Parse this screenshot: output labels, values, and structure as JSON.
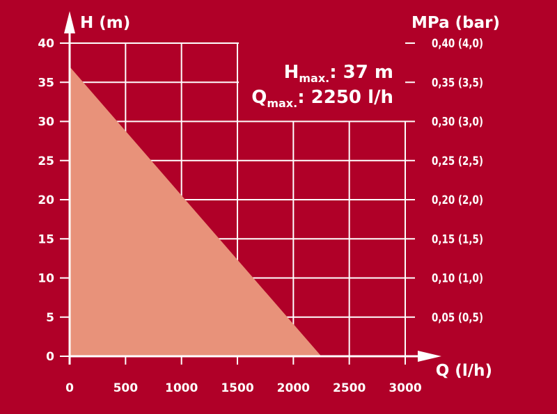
{
  "chart_data": {
    "type": "area",
    "xlabel": "Q (l/h)",
    "ylabel": "H (m)",
    "y2label": "MPa (bar)",
    "xlim": [
      0,
      3000
    ],
    "ylim": [
      0,
      40
    ],
    "x_ticks": [
      "0",
      "500",
      "1000",
      "1500",
      "2000",
      "2500",
      "3000"
    ],
    "y_ticks": [
      "0",
      "5",
      "10",
      "15",
      "20",
      "25",
      "30",
      "35",
      "40"
    ],
    "y2_ticks": [
      "0,05 (0,5)",
      "0,10 (1,0)",
      "0,15 (1,5)",
      "0,20 (2,0)",
      "0,25 (2,5)",
      "0,30 (3,0)",
      "0,35 (3,5)",
      "0,40 (4,0)"
    ],
    "grid": true,
    "series": [
      {
        "x": [
          0,
          2250
        ],
        "y": [
          37,
          0
        ]
      }
    ],
    "annotations": {
      "hmax_prefix": "H",
      "hmax_sub": "max.",
      "hmax_value": ": 37 m",
      "qmax_prefix": "Q",
      "qmax_sub": "max.",
      "qmax_value": ": 2250 l/h"
    },
    "colors": {
      "background": "#b00028",
      "area_fill": "#e8927a",
      "grid": "#ffffff",
      "text": "#ffffff"
    }
  }
}
